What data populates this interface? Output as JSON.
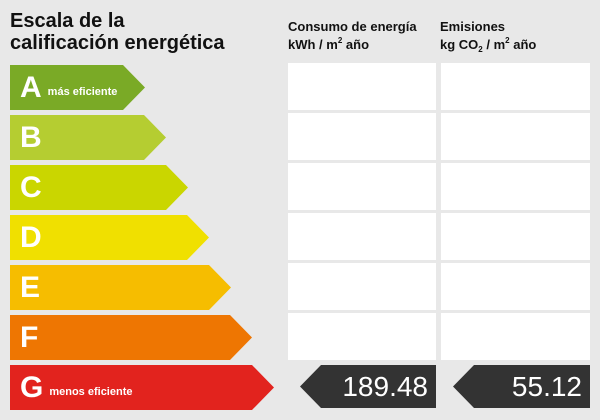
{
  "title_line1": "Escala de la",
  "title_line2": "calificación energética",
  "columns": {
    "consumo": {
      "line1": "Consumo de energía",
      "line2_a": "kWh / m",
      "line2_sup": "2",
      "line2_b": " año"
    },
    "emisiones": {
      "line1": "Emisiones",
      "line2_a": "kg CO",
      "line2_sub": "2",
      "line2_b": " / m",
      "line2_sup": "2",
      "line2_c": " año"
    }
  },
  "ratings": [
    {
      "letter": "A",
      "desc": "más eficiente",
      "color": "#7aaa26"
    },
    {
      "letter": "B",
      "desc": "",
      "color": "#b5cd31"
    },
    {
      "letter": "C",
      "desc": "",
      "color": "#cad600"
    },
    {
      "letter": "D",
      "desc": "",
      "color": "#f0e000"
    },
    {
      "letter": "E",
      "desc": "",
      "color": "#f6bd00"
    },
    {
      "letter": "F",
      "desc": "",
      "color": "#ee7602"
    },
    {
      "letter": "G",
      "desc": "menos eficiente",
      "color": "#e2231e"
    }
  ],
  "current": {
    "rating": "G",
    "consumo_value": "189.48",
    "emisiones_value": "55.12"
  }
}
